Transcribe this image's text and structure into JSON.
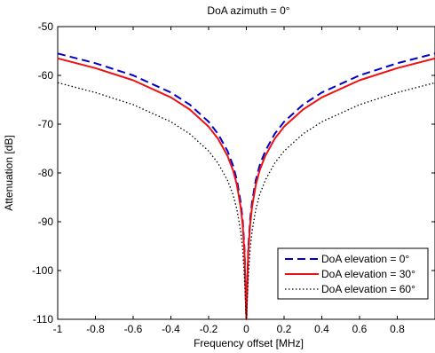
{
  "chart_data": {
    "type": "line",
    "title": "DoA azimuth = 0°",
    "xlabel": "Frequency offset [MHz]",
    "ylabel": "Attenuation [dB]",
    "xlim": [
      -1,
      1
    ],
    "ylim": [
      -110,
      -50
    ],
    "xticks": [
      -1,
      -0.8,
      -0.6,
      -0.4,
      -0.2,
      0,
      0.2,
      0.4,
      0.6,
      0.8
    ],
    "xtick_labels": [
      "-1",
      "-0.8",
      "-0.6",
      "-0.4",
      "-0.2",
      "0",
      "0.2",
      "0.4",
      "0.6",
      "0.8"
    ],
    "yticks": [
      -50,
      -60,
      -70,
      -80,
      -90,
      -100,
      -110
    ],
    "ytick_labels": [
      "-50",
      "-60",
      "-70",
      "-80",
      "-90",
      "-100",
      "-110"
    ],
    "grid": false,
    "legend_position": "bottom-right",
    "series": [
      {
        "name": "DoA elevation = 0°",
        "color": "#0000cc",
        "style": "dashed",
        "x": [
          -1,
          -0.8,
          -0.6,
          -0.4,
          -0.3,
          -0.2,
          -0.15,
          -0.1,
          -0.07,
          -0.05,
          -0.03,
          -0.02,
          -0.01,
          0,
          0.01,
          0.02,
          0.03,
          0.05,
          0.07,
          0.1,
          0.15,
          0.2,
          0.3,
          0.4,
          0.6,
          0.8,
          1
        ],
        "y": [
          -55.5,
          -57.5,
          -60,
          -63.5,
          -66,
          -69.5,
          -72,
          -75.5,
          -78.5,
          -81.5,
          -86,
          -89.5,
          -95.5,
          -110,
          -95.5,
          -89.5,
          -86,
          -81.5,
          -78.5,
          -75.5,
          -72,
          -69.5,
          -66,
          -63.5,
          -60,
          -57.5,
          -55.5
        ]
      },
      {
        "name": "DoA elevation = 30°",
        "color": "#ee1111",
        "style": "solid",
        "x": [
          -1,
          -0.8,
          -0.6,
          -0.4,
          -0.3,
          -0.2,
          -0.15,
          -0.1,
          -0.07,
          -0.05,
          -0.03,
          -0.02,
          -0.01,
          0,
          0.01,
          0.02,
          0.03,
          0.05,
          0.07,
          0.1,
          0.15,
          0.2,
          0.3,
          0.4,
          0.6,
          0.8,
          1
        ],
        "y": [
          -56.5,
          -58.5,
          -61,
          -64.5,
          -67,
          -70.5,
          -73,
          -76.5,
          -79.5,
          -82.5,
          -87,
          -90.5,
          -96.5,
          -110,
          -96.5,
          -90.5,
          -87,
          -82.5,
          -79.5,
          -76.5,
          -73,
          -70.5,
          -67,
          -64.5,
          -61,
          -58.5,
          -56.5
        ]
      },
      {
        "name": "DoA elevation = 60°",
        "color": "#000000",
        "style": "dotted",
        "x": [
          -1,
          -0.8,
          -0.6,
          -0.4,
          -0.3,
          -0.2,
          -0.15,
          -0.1,
          -0.07,
          -0.05,
          -0.03,
          -0.02,
          -0.01,
          0,
          0.01,
          0.02,
          0.03,
          0.05,
          0.07,
          0.1,
          0.15,
          0.2,
          0.3,
          0.4,
          0.6,
          0.8,
          1
        ],
        "y": [
          -61.5,
          -63.5,
          -66,
          -69.5,
          -72,
          -75.5,
          -78,
          -81.5,
          -84.5,
          -87.5,
          -92,
          -95.5,
          -101.5,
          -110,
          -101.5,
          -95.5,
          -92,
          -87.5,
          -84.5,
          -81.5,
          -78,
          -75.5,
          -72,
          -69.5,
          -66,
          -63.5,
          -61.5
        ]
      }
    ]
  }
}
